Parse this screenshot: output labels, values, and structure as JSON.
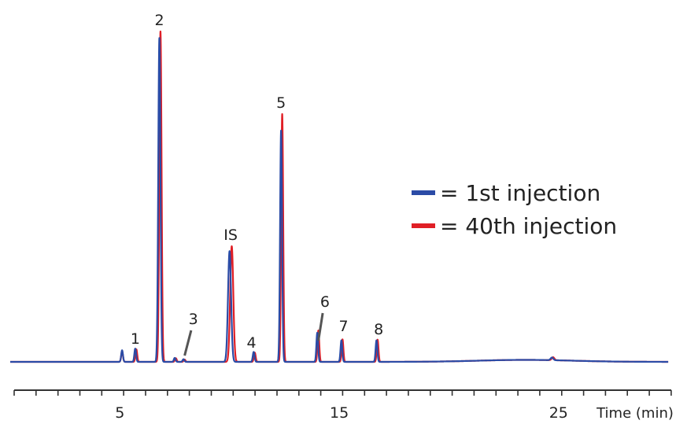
{
  "chart_data": {
    "type": "line",
    "x_unit": "min",
    "xlim": [
      0,
      30
    ],
    "xlabel": "Time (min)",
    "ylabel": "",
    "grid": false,
    "legend_placement": "right",
    "x_ticks": [
      {
        "value": 5,
        "label": "5"
      },
      {
        "value": 15,
        "label": "15"
      },
      {
        "value": 25,
        "label": "25"
      }
    ],
    "series": [
      {
        "name": "= 1st injection",
        "color": "#2b4ba6",
        "peaks": [
          {
            "rt": 5.1,
            "height": 3.5,
            "width": 0.04,
            "label": ""
          },
          {
            "rt": 5.7,
            "height": 4.0,
            "width": 0.04,
            "label": "1"
          },
          {
            "rt": 6.8,
            "height": 98.0,
            "width": 0.05,
            "label": "2"
          },
          {
            "rt": 7.5,
            "height": 1.2,
            "width": 0.04,
            "label": ""
          },
          {
            "rt": 7.9,
            "height": 0.8,
            "width": 0.04,
            "label": "3"
          },
          {
            "rt": 10.0,
            "height": 33.5,
            "width": 0.07,
            "label": "IS"
          },
          {
            "rt": 11.1,
            "height": 3.0,
            "width": 0.04,
            "label": "4"
          },
          {
            "rt": 12.35,
            "height": 70.0,
            "width": 0.045,
            "label": "5"
          },
          {
            "rt": 14.0,
            "height": 8.8,
            "width": 0.04,
            "label": "6"
          },
          {
            "rt": 15.1,
            "height": 6.5,
            "width": 0.04,
            "label": "7"
          },
          {
            "rt": 16.7,
            "height": 6.5,
            "width": 0.04,
            "label": "8"
          },
          {
            "rt": 24.7,
            "height": 0.8,
            "width": 0.06,
            "label": ""
          }
        ]
      },
      {
        "name": "= 40th injection",
        "color": "#e01f26",
        "peaks": [
          {
            "rt": 5.1,
            "height": 3.2,
            "width": 0.04,
            "label": ""
          },
          {
            "rt": 5.75,
            "height": 3.8,
            "width": 0.04,
            "label": ""
          },
          {
            "rt": 6.85,
            "height": 100.0,
            "width": 0.05,
            "label": ""
          },
          {
            "rt": 7.55,
            "height": 1.1,
            "width": 0.04,
            "label": ""
          },
          {
            "rt": 7.95,
            "height": 0.7,
            "width": 0.04,
            "label": ""
          },
          {
            "rt": 10.1,
            "height": 35.0,
            "width": 0.07,
            "label": ""
          },
          {
            "rt": 11.15,
            "height": 2.8,
            "width": 0.04,
            "label": ""
          },
          {
            "rt": 12.4,
            "height": 75.0,
            "width": 0.045,
            "label": ""
          },
          {
            "rt": 14.05,
            "height": 9.5,
            "width": 0.04,
            "label": ""
          },
          {
            "rt": 15.15,
            "height": 6.8,
            "width": 0.04,
            "label": ""
          },
          {
            "rt": 16.75,
            "height": 6.7,
            "width": 0.04,
            "label": ""
          },
          {
            "rt": 24.75,
            "height": 0.9,
            "width": 0.06,
            "label": ""
          }
        ]
      }
    ],
    "annotations": [
      {
        "text": "1",
        "x": 5.7,
        "y": 4.0
      },
      {
        "text": "2",
        "x": 6.8,
        "y": 100.0
      },
      {
        "text": "3",
        "x": 8.0,
        "y": 0.8,
        "pointer": true
      },
      {
        "text": "IS",
        "x": 10.05,
        "y": 35.0
      },
      {
        "text": "4",
        "x": 11.1,
        "y": 3.0
      },
      {
        "text": "5",
        "x": 12.35,
        "y": 75.0
      },
      {
        "text": "6",
        "x": 14.1,
        "y": 9.5,
        "pointer": true
      },
      {
        "text": "7",
        "x": 15.15,
        "y": 6.8
      },
      {
        "text": "8",
        "x": 16.75,
        "y": 6.7
      }
    ]
  }
}
